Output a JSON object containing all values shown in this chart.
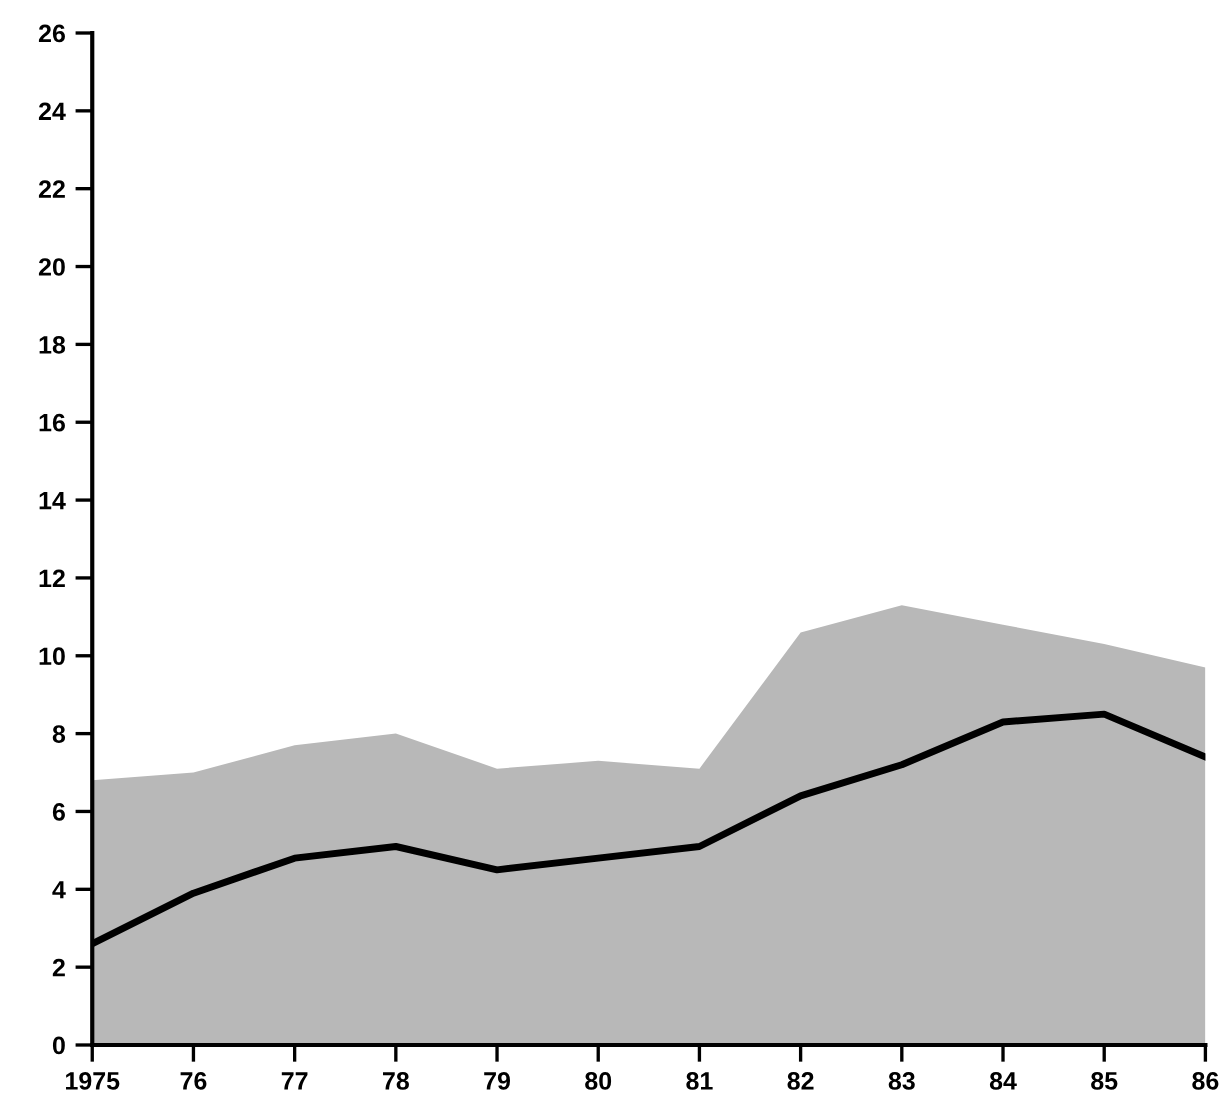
{
  "chart_data": {
    "type": "line",
    "x": [
      1975,
      1976,
      1977,
      1978,
      1979,
      1980,
      1981,
      1982,
      1983,
      1984,
      1985,
      1986
    ],
    "series": [
      {
        "type": "area",
        "color": "#b8b8b8",
        "values": [
          6.8,
          7.0,
          7.7,
          8.0,
          7.1,
          7.3,
          7.1,
          10.6,
          11.3,
          10.8,
          10.3,
          9.7
        ]
      },
      {
        "color": "#000000",
        "values": [
          2.6,
          3.9,
          4.8,
          5.1,
          4.5,
          4.8,
          5.1,
          6.4,
          7.2,
          8.3,
          8.5,
          7.4
        ]
      }
    ],
    "xlim": [
      1975,
      1986
    ],
    "xticks": [
      1975,
      {
        "value": 1976,
        "label": "76"
      },
      {
        "value": 1977,
        "label": "77"
      },
      {
        "value": 1978,
        "label": "78"
      },
      {
        "value": 1979,
        "label": "79"
      },
      {
        "value": 1980,
        "label": "80"
      },
      {
        "value": 1981,
        "label": "81"
      },
      {
        "value": 1982,
        "label": "82"
      },
      {
        "value": 1983,
        "label": "83"
      },
      {
        "value": 1984,
        "label": "84"
      },
      {
        "value": 1985,
        "label": "85"
      },
      {
        "value": 1986,
        "label": "86"
      }
    ],
    "ylim": [
      0,
      26
    ],
    "yticks": [
      0,
      2,
      4,
      6,
      8,
      10,
      12,
      14,
      16,
      18,
      20,
      22,
      24,
      26
    ],
    "grid": false,
    "marker": "none",
    "line_style": "solid"
  }
}
